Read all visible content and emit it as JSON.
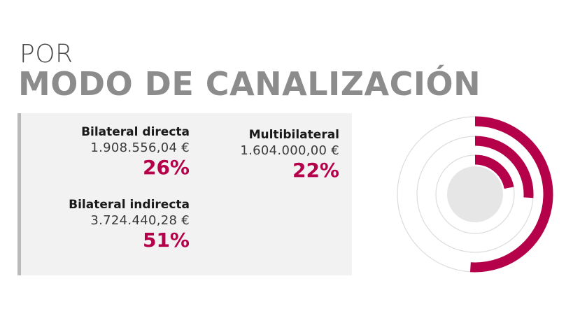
{
  "title": {
    "line1": "POR",
    "line2": "MODO DE CANALIZACIÓN"
  },
  "colors": {
    "accent": "#b5004a",
    "track": "#dcdcdc",
    "center": "#e6e6e7"
  },
  "chart_data": {
    "type": "pie",
    "title": "POR MODO DE CANALIZACIÓN",
    "legend": "left",
    "series": [
      {
        "name": "Bilateral directa",
        "amount": "1.908.556,04 €",
        "percent_label": "26%",
        "value": 26
      },
      {
        "name": "Multibilateral",
        "amount": "1.604.000,00 €",
        "percent_label": "22%",
        "value": 22
      },
      {
        "name": "Bilateral indirecta",
        "amount": "3.724.440,28 €",
        "percent_label": "51%",
        "value": 51
      }
    ]
  }
}
